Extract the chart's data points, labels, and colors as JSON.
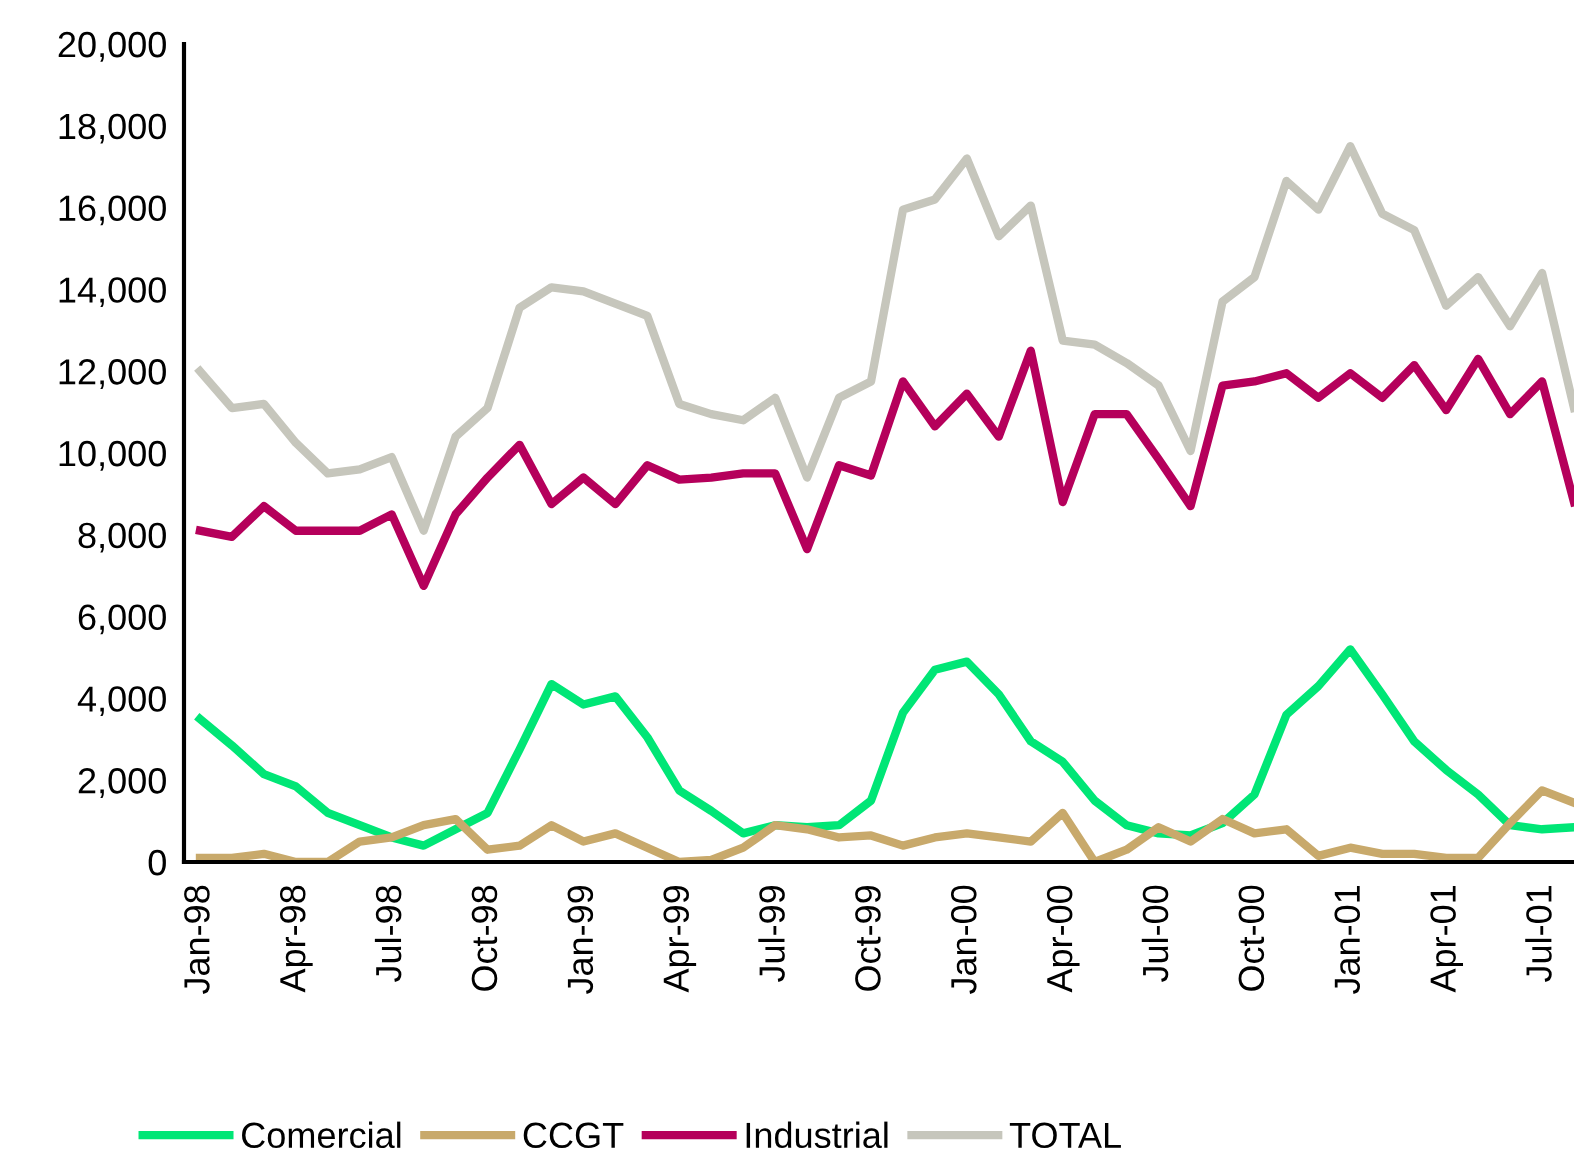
{
  "chart_data": {
    "type": "line",
    "categories": [
      "Jan-98",
      null,
      null,
      "Apr-98",
      null,
      null,
      "Jul-98",
      null,
      null,
      "Oct-98",
      null,
      null,
      "Jan-99",
      null,
      null,
      "Apr-99",
      null,
      null,
      "Jul-99",
      null,
      null,
      "Oct-99",
      null,
      null,
      "Jan-00",
      null,
      null,
      "Apr-00",
      null,
      null,
      "Jul-00",
      null,
      null,
      "Oct-00",
      null,
      null,
      "Jan-01",
      null,
      null,
      "Apr-01",
      null,
      null,
      "Jul-01",
      null
    ],
    "series": [
      {
        "name": "Comercial",
        "color": "#00e676",
        "values": [
          3500,
          2850,
          2150,
          1850,
          1200,
          900,
          600,
          400,
          800,
          1200,
          2750,
          4350,
          3850,
          4050,
          3050,
          1750,
          1250,
          700,
          900,
          850,
          900,
          1500,
          3650,
          4700,
          4900,
          4100,
          2950,
          2450,
          1500,
          900,
          700,
          650,
          950,
          1650,
          3600,
          4300,
          5200,
          4100,
          2950,
          2250,
          1650,
          900,
          800,
          850
        ]
      },
      {
        "name": "CCGT",
        "color": "#c8a96b",
        "values": [
          100,
          100,
          200,
          0,
          0,
          500,
          600,
          900,
          1050,
          300,
          400,
          900,
          500,
          700,
          350,
          0,
          50,
          350,
          900,
          800,
          600,
          650,
          400,
          600,
          700,
          600,
          500,
          1200,
          0,
          300,
          850,
          500,
          1050,
          700,
          800,
          150,
          350,
          200,
          200,
          100,
          100,
          950,
          1750,
          1450
        ]
      },
      {
        "name": "Industrial",
        "color": "#b5005b",
        "values": [
          8100,
          7950,
          8700,
          8100,
          8100,
          8100,
          8500,
          6750,
          8500,
          9400,
          10200,
          8750,
          9400,
          8750,
          9700,
          9350,
          9400,
          9500,
          9500,
          7650,
          9700,
          9450,
          11750,
          10650,
          11450,
          10400,
          12500,
          8800,
          10950,
          10950,
          9850,
          8700,
          11650,
          11750,
          11950,
          11350,
          11950,
          11350,
          12150,
          11050,
          12300,
          10950,
          11750,
          8800
        ]
      },
      {
        "name": "TOTAL",
        "color": "#c6c6bc",
        "values": [
          12000,
          11100,
          11200,
          10250,
          9500,
          9600,
          9900,
          8100,
          10400,
          11100,
          13550,
          14050,
          13950,
          13650,
          13350,
          11200,
          10950,
          10800,
          11350,
          9400,
          11350,
          11750,
          15950,
          16200,
          17200,
          15300,
          16050,
          12750,
          12650,
          12200,
          11650,
          10050,
          13700,
          14300,
          16650,
          15950,
          17500,
          15850,
          15450,
          13600,
          14300,
          13100,
          14400,
          11100
        ]
      }
    ],
    "ylim": [
      0,
      20000
    ],
    "yticks": [
      {
        "value": 0,
        "label": "0"
      },
      {
        "value": 2000,
        "label": "2,000"
      },
      {
        "value": 4000,
        "label": "4,000"
      },
      {
        "value": 6000,
        "label": "6,000"
      },
      {
        "value": 8000,
        "label": "8,000"
      },
      {
        "value": 10000,
        "label": "10,000"
      },
      {
        "value": 12000,
        "label": "12,000"
      },
      {
        "value": 14000,
        "label": "14,000"
      },
      {
        "value": 16000,
        "label": "16,000"
      },
      {
        "value": 18000,
        "label": "18,000"
      },
      {
        "value": 20000,
        "label": "20,000"
      }
    ],
    "legend": "bottom",
    "grid": false,
    "marker": "none",
    "line_style": "solid"
  }
}
